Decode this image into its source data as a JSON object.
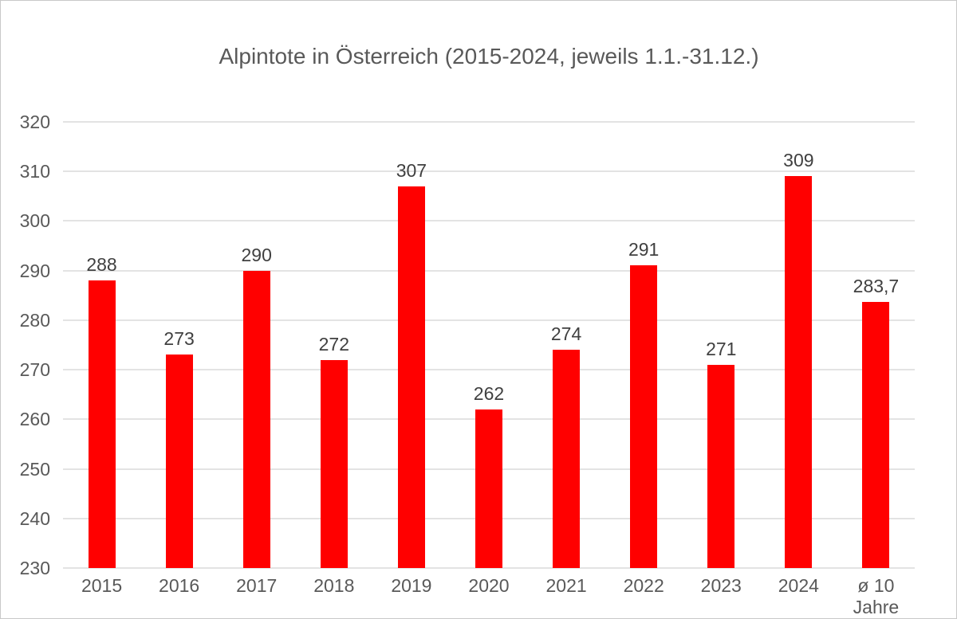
{
  "page": {
    "background": "#ffffff",
    "border_color": "#c9c9c9"
  },
  "chart_data": {
    "type": "bar",
    "title": "Alpintote in Österreich (2015-2024, jeweils 1.1.-31.12.)",
    "categories": [
      "2015",
      "2016",
      "2017",
      "2018",
      "2019",
      "2020",
      "2021",
      "2022",
      "2023",
      "2024",
      "ø 10 Jahre"
    ],
    "xtick_labels": [
      "2015",
      "2016",
      "2017",
      "2018",
      "2019",
      "2020",
      "2021",
      "2022",
      "2023",
      "2024",
      "ø 10\nJahre"
    ],
    "values": [
      288,
      273,
      290,
      272,
      307,
      262,
      274,
      291,
      271,
      309,
      283.7
    ],
    "value_labels": [
      "288",
      "273",
      "290",
      "272",
      "307",
      "262",
      "274",
      "291",
      "271",
      "309",
      "283,7"
    ],
    "xlabel": "",
    "ylabel": "",
    "ylim": [
      230,
      320
    ],
    "yticks": [
      230,
      240,
      250,
      260,
      270,
      280,
      290,
      300,
      310,
      320
    ],
    "grid": true,
    "legend": false,
    "bar_color": "#ff0000",
    "grid_color": "#e3e3e3",
    "axis_label_color": "#595959",
    "value_label_color": "#404040",
    "title_color": "#595959"
  }
}
